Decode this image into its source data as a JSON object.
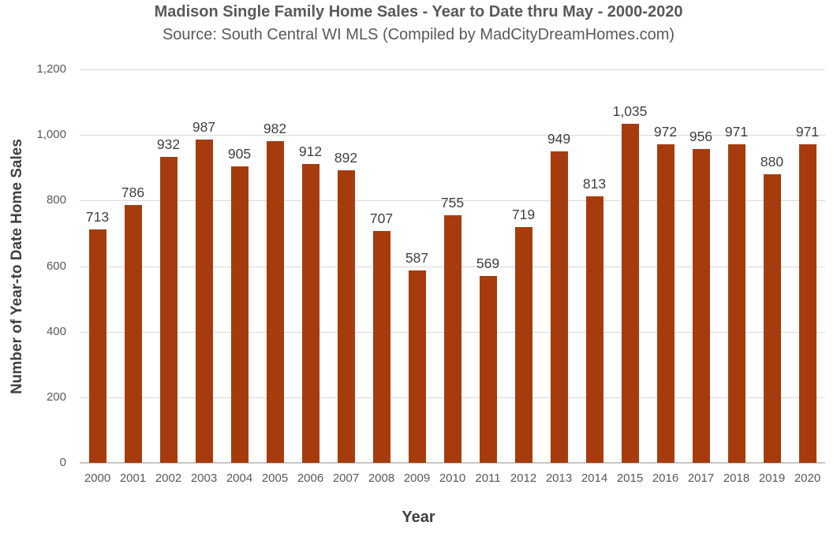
{
  "chart_data": {
    "type": "bar",
    "title": "Madison Single Family Home Sales - Year to Date thru May - 2000-2020",
    "subtitle": "Source: South Central WI MLS (Compiled by MadCityDreamHomes.com)",
    "xlabel": "Year",
    "ylabel": "Number of Year-to Date Home Sales",
    "categories": [
      "2000",
      "2001",
      "2002",
      "2003",
      "2004",
      "2005",
      "2006",
      "2007",
      "2008",
      "2009",
      "2010",
      "2011",
      "2012",
      "2013",
      "2014",
      "2015",
      "2016",
      "2017",
      "2018",
      "2019",
      "2020"
    ],
    "values": [
      713,
      786,
      932,
      987,
      905,
      982,
      912,
      892,
      707,
      587,
      755,
      569,
      719,
      949,
      813,
      1035,
      972,
      956,
      971,
      880,
      971
    ],
    "value_labels": [
      "713",
      "786",
      "932",
      "987",
      "905",
      "982",
      "912",
      "892",
      "707",
      "587",
      "755",
      "569",
      "719",
      "949",
      "813",
      "1,035",
      "972",
      "956",
      "971",
      "880",
      "971"
    ],
    "ylim": [
      0,
      1200
    ],
    "ytick_values": [
      0,
      200,
      400,
      600,
      800,
      1000,
      1200
    ],
    "ytick_labels": [
      "0",
      "200",
      "400",
      "600",
      "800",
      "1,000",
      "1,200"
    ],
    "grid": "horizontal gridlines on",
    "legend": "none",
    "bar_color": "#a63c0e",
    "gridline_color": "#d9d9d9",
    "title_color": "#595959",
    "label_color": "#404040",
    "tick_label_color": "#595959"
  }
}
